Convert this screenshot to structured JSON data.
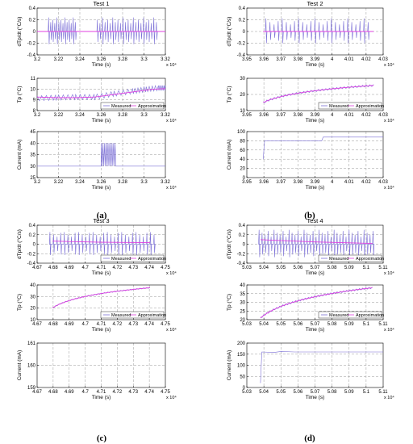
{
  "colors": {
    "measured": "#7b6fd6",
    "approx": "#e040e0",
    "grid": "#9a9a9a",
    "axis": "#000000"
  },
  "charts": [
    {
      "title": "Test 1",
      "ylabel": "dTp/dt (°C/s)",
      "xlabel": "Time (s)",
      "mult": "x 10⁴",
      "ylim": [
        -0.4,
        0.4
      ],
      "yticks": [
        "-0.4",
        "-0.2",
        "0",
        "0.2",
        "0.4"
      ],
      "xlim": [
        3.2,
        3.32
      ],
      "xticks": [
        "3.2",
        "3.22",
        "3.24",
        "3.26",
        "3.28",
        "3.3",
        "3.32"
      ],
      "legend": false
    },
    {
      "title": "",
      "ylabel": "Tp (°C)",
      "xlabel": "Time (s)",
      "mult": "x 10⁴",
      "ylim": [
        8,
        11
      ],
      "yticks": [
        "8",
        "9",
        "10",
        "11"
      ],
      "xlim": [
        3.2,
        3.32
      ],
      "xticks": [
        "3.2",
        "3.22",
        "3.24",
        "3.26",
        "3.28",
        "3.3",
        "3.32"
      ],
      "legend": true
    },
    {
      "title": "",
      "ylabel": "Current (mA)",
      "xlabel": "Time (s)",
      "mult": "x 10⁴",
      "ylim": [
        25,
        45
      ],
      "yticks": [
        "25",
        "30",
        "35",
        "40",
        "45"
      ],
      "xlim": [
        3.2,
        3.32
      ],
      "xticks": [
        "3.2",
        "3.22",
        "3.24",
        "3.26",
        "3.28",
        "3.3",
        "3.32"
      ],
      "legend": false
    },
    {
      "title": "Test 2",
      "ylabel": "dTp/dt (°C/s)",
      "xlabel": "Time (s)",
      "mult": "x 10⁴",
      "ylim": [
        -0.4,
        0.4
      ],
      "yticks": [
        "-0.4",
        "-0.2",
        "0",
        "0.2",
        "0.4"
      ],
      "xlim": [
        3.95,
        4.03
      ],
      "xticks": [
        "3.95",
        "3.96",
        "3.97",
        "3.98",
        "3.99",
        "4",
        "4.01",
        "4.02",
        "4.03"
      ],
      "legend": false
    },
    {
      "title": "",
      "ylabel": "Tp (°C)",
      "xlabel": "Time (s)",
      "mult": "x 10⁴",
      "ylim": [
        10,
        30
      ],
      "yticks": [
        "10",
        "20",
        "30"
      ],
      "xlim": [
        3.95,
        4.03
      ],
      "xticks": [
        "3.95",
        "3.96",
        "3.97",
        "3.98",
        "3.99",
        "4",
        "4.01",
        "4.02",
        "4.03"
      ],
      "legend": true
    },
    {
      "title": "",
      "ylabel": "Current (mA)",
      "xlabel": "Time (s)",
      "mult": "x 10⁴",
      "ylim": [
        0,
        100
      ],
      "yticks": [
        "0",
        "20",
        "40",
        "60",
        "80",
        "100"
      ],
      "xlim": [
        3.95,
        4.03
      ],
      "xticks": [
        "3.95",
        "3.96",
        "3.97",
        "3.98",
        "3.99",
        "4",
        "4.01",
        "4.02",
        "4.03"
      ],
      "legend": false
    },
    {
      "title": "Test 3",
      "ylabel": "dTp/dt (°C/s)",
      "xlabel": "Time (s)",
      "mult": "x 10⁴",
      "ylim": [
        -0.4,
        0.4
      ],
      "yticks": [
        "-0.4",
        "-0.2",
        "0",
        "0.2",
        "0.4"
      ],
      "xlim": [
        4.67,
        4.75
      ],
      "xticks": [
        "4.67",
        "4.68",
        "4.69",
        "4.7",
        "4.71",
        "4.72",
        "4.73",
        "4.74",
        "4.75"
      ],
      "legend": true
    },
    {
      "title": "",
      "ylabel": "Tp (°C)",
      "xlabel": "Time (s)",
      "mult": "x 10⁴",
      "ylim": [
        10,
        40
      ],
      "yticks": [
        "10",
        "20",
        "30",
        "40"
      ],
      "xlim": [
        4.67,
        4.75
      ],
      "xticks": [
        "4.67",
        "4.68",
        "4.69",
        "4.7",
        "4.71",
        "4.72",
        "4.73",
        "4.74",
        "4.75"
      ],
      "legend": true
    },
    {
      "title": "",
      "ylabel": "Current (mA)",
      "xlabel": "Time (s)",
      "mult": "x 10⁴",
      "ylim": [
        159,
        161
      ],
      "yticks": [
        "159",
        "160",
        "161"
      ],
      "xlim": [
        4.67,
        4.75
      ],
      "xticks": [
        "4.67",
        "4.68",
        "4.69",
        "4.7",
        "4.71",
        "4.72",
        "4.73",
        "4.74",
        "4.75"
      ],
      "legend": false
    },
    {
      "title": "Test 4",
      "ylabel": "dTp/dt (°C/s)",
      "xlabel": "Time (s)",
      "mult": "x 10⁴",
      "ylim": [
        -0.4,
        0.4
      ],
      "yticks": [
        "-0.4",
        "-0.2",
        "0",
        "0.2",
        "0.4"
      ],
      "xlim": [
        5.03,
        5.11
      ],
      "xticks": [
        "5.03",
        "5.04",
        "5.05",
        "5.06",
        "5.07",
        "5.08",
        "5.09",
        "5.1",
        "5.11"
      ],
      "legend": true
    },
    {
      "title": "",
      "ylabel": "Tp (°C)",
      "xlabel": "Time (s)",
      "mult": "x 10⁴",
      "ylim": [
        20,
        40
      ],
      "yticks": [
        "20",
        "25",
        "30",
        "35",
        "40"
      ],
      "xlim": [
        5.03,
        5.11
      ],
      "xticks": [
        "5.03",
        "5.04",
        "5.05",
        "5.06",
        "5.07",
        "5.08",
        "5.09",
        "5.1",
        "5.11"
      ],
      "legend": true
    },
    {
      "title": "",
      "ylabel": "Current (mA)",
      "xlabel": "Time (s)",
      "mult": "x 10⁴",
      "ylim": [
        0,
        200
      ],
      "yticks": [
        "0",
        "50",
        "100",
        "150",
        "200"
      ],
      "xlim": [
        5.03,
        5.11
      ],
      "xticks": [
        "5.03",
        "5.04",
        "5.05",
        "5.06",
        "5.07",
        "5.08",
        "5.09",
        "5.1",
        "5.11"
      ],
      "legend": false
    }
  ],
  "legend": {
    "measured": "Measured",
    "approx": "Approximation"
  },
  "panels": [
    "(a)",
    "(b)",
    "(c)",
    "(d)"
  ],
  "chart_data": [
    {
      "type": "line",
      "title": "Test 1",
      "xlabel": "Time (s)",
      "ylabel": "dTp/dt (°C/s)",
      "ylim": [
        -0.4,
        0.4
      ],
      "xlim": [
        32000,
        33200
      ],
      "series": [
        {
          "name": "Measured",
          "x": [
            32000,
            32140,
            32180,
            32320,
            32450,
            32600,
            32850,
            32950,
            33100,
            33200
          ],
          "y": [
            0,
            0,
            0.2,
            -0.2,
            0,
            0.2,
            -0.2,
            0.2,
            -0.2,
            0
          ]
        },
        {
          "name": "Approximation",
          "x": [
            32000,
            33200
          ],
          "y": [
            0,
            0
          ]
        }
      ]
    },
    {
      "type": "line",
      "xlabel": "Time (s)",
      "ylabel": "Tp (°C)",
      "ylim": [
        8,
        11
      ],
      "xlim": [
        32000,
        33200
      ],
      "series": [
        {
          "name": "Measured",
          "x": [
            32000,
            32200,
            32400,
            32600,
            32800,
            33000,
            33200
          ],
          "y": [
            8.8,
            8.75,
            8.9,
            9.3,
            9.6,
            9.9,
            10.1
          ]
        },
        {
          "name": "Approximation",
          "x": [
            32000,
            32200,
            32400,
            32600,
            32800,
            33000,
            33200
          ],
          "y": [
            8.9,
            8.8,
            8.9,
            9.2,
            9.6,
            9.9,
            10.1
          ]
        }
      ]
    },
    {
      "type": "line",
      "xlabel": "Time (s)",
      "ylabel": "Current (mA)",
      "ylim": [
        25,
        45
      ],
      "xlim": [
        32000,
        33200
      ],
      "series": [
        {
          "name": "Measured",
          "x": [
            32000,
            32600,
            32600,
            32720,
            32720,
            33200
          ],
          "y": [
            30,
            30,
            40,
            40,
            30,
            30
          ]
        }
      ]
    },
    {
      "type": "line",
      "title": "Test 2",
      "xlabel": "Time (s)",
      "ylabel": "dTp/dt (°C/s)",
      "ylim": [
        -0.4,
        0.4
      ],
      "xlim": [
        39500,
        40300
      ],
      "series": [
        {
          "name": "Measured",
          "x": [
            39600,
            39700,
            39800,
            39900,
            40000,
            40100,
            40200
          ],
          "y": [
            0,
            0.15,
            -0.15,
            0.15,
            -0.15,
            0.1,
            0
          ]
        },
        {
          "name": "Approximation",
          "x": [
            39600,
            40200
          ],
          "y": [
            0,
            0
          ]
        }
      ]
    },
    {
      "type": "line",
      "xlabel": "Time (s)",
      "ylabel": "Tp (°C)",
      "ylim": [
        10,
        30
      ],
      "xlim": [
        39500,
        40300
      ],
      "series": [
        {
          "name": "Measured",
          "x": [
            39600,
            39700,
            39800,
            39900,
            40000,
            40100,
            40200
          ],
          "y": [
            15,
            18,
            20.5,
            22,
            23.5,
            24.5,
            25
          ]
        },
        {
          "name": "Approximation",
          "x": [
            39600,
            39700,
            39800,
            39900,
            40000,
            40100,
            40200
          ],
          "y": [
            15,
            18,
            20.5,
            22,
            23.5,
            24.5,
            25
          ]
        }
      ]
    },
    {
      "type": "line",
      "xlabel": "Time (s)",
      "ylabel": "Current (mA)",
      "ylim": [
        0,
        100
      ],
      "xlim": [
        39500,
        40300
      ],
      "series": [
        {
          "name": "Measured",
          "x": [
            39590,
            39600,
            39880,
            39890,
            40200
          ],
          "y": [
            40,
            80,
            80,
            90,
            90
          ]
        }
      ]
    },
    {
      "type": "line",
      "title": "Test 3",
      "xlabel": "Time (s)",
      "ylabel": "dTp/dt (°C/s)",
      "ylim": [
        -0.4,
        0.4
      ],
      "xlim": [
        46700,
        47500
      ],
      "series": [
        {
          "name": "Measured",
          "x": [
            46800,
            46900,
            47000,
            47100,
            47200,
            47300,
            47400
          ],
          "y": [
            0.2,
            -0.1,
            0.2,
            -0.1,
            0.2,
            -0.1,
            0.2
          ]
        },
        {
          "name": "Approximation",
          "x": [
            46800,
            47400
          ],
          "y": [
            0.05,
            0.03
          ]
        }
      ]
    },
    {
      "type": "line",
      "xlabel": "Time (s)",
      "ylabel": "Tp (°C)",
      "ylim": [
        10,
        40
      ],
      "xlim": [
        46700,
        47500
      ],
      "series": [
        {
          "name": "Measured",
          "x": [
            46800,
            46900,
            47000,
            47100,
            47200,
            47300,
            47400
          ],
          "y": [
            20,
            26,
            29.5,
            32,
            34,
            36,
            38
          ]
        },
        {
          "name": "Approximation",
          "x": [
            46800,
            46900,
            47000,
            47100,
            47200,
            47300,
            47400
          ],
          "y": [
            20,
            26,
            29.5,
            32,
            34,
            36,
            38
          ]
        }
      ]
    },
    {
      "type": "line",
      "xlabel": "Time (s)",
      "ylabel": "Current (mA)",
      "ylim": [
        159,
        161
      ],
      "xlim": [
        46700,
        47500
      ],
      "series": []
    },
    {
      "type": "line",
      "title": "Test 4",
      "xlabel": "Time (s)",
      "ylabel": "dTp/dt (°C/s)",
      "ylim": [
        -0.4,
        0.4
      ],
      "xlim": [
        50300,
        51100
      ],
      "series": [
        {
          "name": "Measured",
          "x": [
            50400,
            50500,
            50600,
            50700,
            50800,
            50900,
            51000
          ],
          "y": [
            0.25,
            -0.2,
            0.2,
            -0.15,
            0.2,
            -0.2,
            0.1
          ]
        },
        {
          "name": "Approximation",
          "x": [
            50400,
            51000
          ],
          "y": [
            0.08,
            0.02
          ]
        }
      ]
    },
    {
      "type": "line",
      "xlabel": "Time (s)",
      "ylabel": "Tp (°C)",
      "ylim": [
        20,
        40
      ],
      "xlim": [
        50300,
        51100
      ],
      "series": [
        {
          "name": "Measured",
          "x": [
            50400,
            50500,
            50600,
            50700,
            50800,
            50900,
            51000
          ],
          "y": [
            21,
            27,
            31,
            34,
            36,
            37.5,
            38.5
          ]
        },
        {
          "name": "Approximation",
          "x": [
            50400,
            50500,
            50600,
            50700,
            50800,
            50900,
            51000
          ],
          "y": [
            21,
            27,
            31,
            34,
            36,
            37.5,
            38.5
          ]
        }
      ]
    },
    {
      "type": "line",
      "xlabel": "Time (s)",
      "ylabel": "Current (mA)",
      "ylim": [
        0,
        200
      ],
      "xlim": [
        50300,
        51100
      ],
      "series": [
        {
          "name": "Measured",
          "x": [
            50395,
            50400,
            50500,
            51100
          ],
          "y": [
            20,
            160,
            160,
            160
          ]
        }
      ]
    }
  ]
}
